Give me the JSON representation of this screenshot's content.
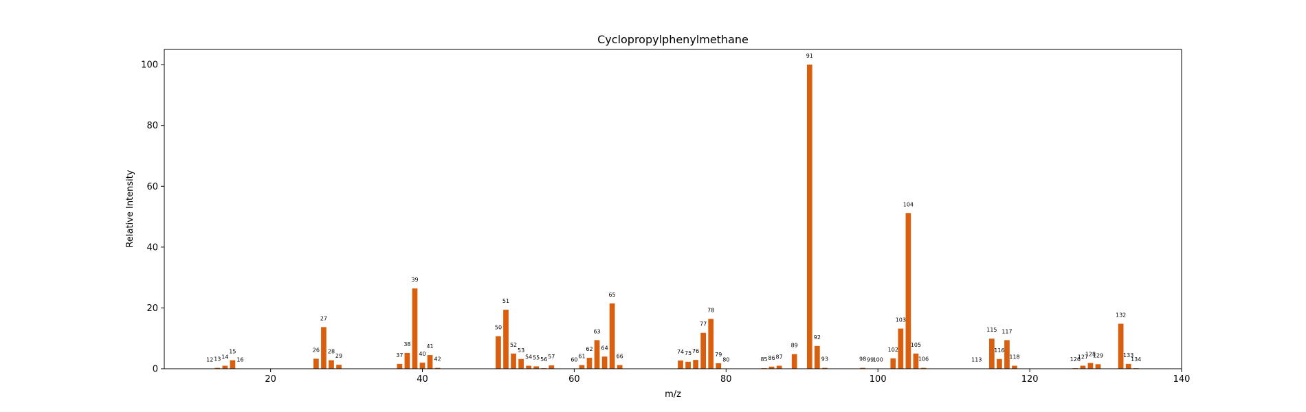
{
  "chart_data": {
    "type": "bar",
    "title": "Cyclopropylphenylmethane",
    "xlabel": "m/z",
    "ylabel": "Relative Intensity",
    "xlim": [
      6,
      140
    ],
    "ylim": [
      0,
      105
    ],
    "xticks": [
      20,
      40,
      60,
      80,
      100,
      120,
      140
    ],
    "yticks": [
      0,
      20,
      40,
      60,
      80,
      100
    ],
    "grid": false,
    "bar_color": "#d95f0e",
    "x": [
      12,
      13,
      14,
      15,
      16,
      26,
      27,
      28,
      29,
      37,
      38,
      39,
      40,
      41,
      42,
      50,
      51,
      52,
      53,
      54,
      55,
      56,
      57,
      60,
      61,
      62,
      63,
      64,
      65,
      66,
      74,
      75,
      76,
      77,
      78,
      79,
      80,
      85,
      86,
      87,
      89,
      91,
      92,
      93,
      98,
      99,
      100,
      102,
      103,
      104,
      105,
      106,
      113,
      115,
      116,
      117,
      118,
      126,
      127,
      128,
      129,
      132,
      133,
      134
    ],
    "values": [
      0.1,
      0.3,
      1.0,
      2.8,
      0.1,
      3.3,
      13.7,
      2.8,
      1.3,
      1.6,
      5.2,
      26.4,
      2.0,
      4.5,
      0.3,
      10.7,
      19.4,
      5.0,
      3.2,
      1.0,
      0.8,
      0.2,
      1.1,
      0.1,
      1.2,
      3.6,
      9.4,
      4.0,
      21.5,
      1.2,
      2.7,
      2.3,
      2.9,
      11.8,
      16.4,
      1.8,
      0.1,
      0.2,
      0.7,
      1.0,
      4.8,
      100,
      7.5,
      0.3,
      0.3,
      0.1,
      0.1,
      3.4,
      13.2,
      51.2,
      5.0,
      0.3,
      0.1,
      9.9,
      3.2,
      9.4,
      1.0,
      0.2,
      1.0,
      1.9,
      1.5,
      14.8,
      1.6,
      0.2
    ]
  }
}
